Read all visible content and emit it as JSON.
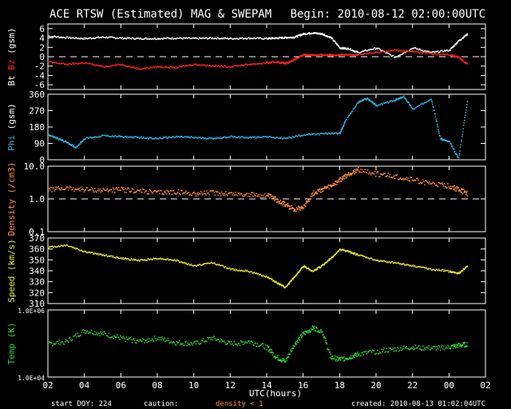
{
  "header": {
    "title": "ACE RTSW (Estimated) MAG & SWEPAM",
    "begin": "Begin: 2010-08-12 02:00:00UTC"
  },
  "footer": {
    "start_doy": "start DOY: 224",
    "caution": "caution:",
    "density_note": "density < 1",
    "created": "created: 2010-08-13 01:02:04UTC"
  },
  "x_axis": {
    "label": "UTC(hours)",
    "ticks": [
      "02",
      "04",
      "06",
      "08",
      "10",
      "12",
      "14",
      "16",
      "18",
      "20",
      "22",
      "00",
      "02"
    ]
  },
  "colors": {
    "bt": "#ffffff",
    "bz": "#ff2020",
    "phi": "#30b0e0",
    "density": "#ff8c3a",
    "speed": "#e8e830",
    "temp": "#30d030",
    "axis": "#ffffff",
    "background": "#000000"
  },
  "chart_data": [
    {
      "type": "scatter",
      "panel": "mag",
      "ylabel_parts": [
        "Bt",
        "Bz",
        "(gsm)"
      ],
      "ylim": [
        -7,
        7
      ],
      "yticks": [
        "6",
        "4",
        "2",
        "0",
        "-2",
        "-4",
        "-6"
      ],
      "x": [
        0,
        1,
        2,
        3,
        4,
        5,
        6,
        7,
        8,
        9,
        10,
        11,
        12,
        12.5,
        13,
        13.5,
        14,
        14.5,
        15,
        15.5,
        16,
        16.5,
        17,
        18,
        19,
        20,
        21,
        22,
        22.5,
        23
      ],
      "series": [
        {
          "name": "Bt",
          "values": [
            4.5,
            4.2,
            4.0,
            4.3,
            4.1,
            4.0,
            4.0,
            4.1,
            4.0,
            4.1,
            4.0,
            4.1,
            4.0,
            4.1,
            4.2,
            4.3,
            5.0,
            5.2,
            5.0,
            4.2,
            2.0,
            1.8,
            1.0,
            2.0,
            0.0,
            2.0,
            1.0,
            1.5,
            3.5,
            5.0
          ]
        },
        {
          "name": "Bz",
          "values": [
            -1.0,
            -1.5,
            -1.2,
            -2.0,
            -1.5,
            -2.5,
            -2.0,
            -2.2,
            -1.5,
            -1.8,
            -2.0,
            -1.5,
            -1.2,
            -1.0,
            -1.3,
            -0.5,
            0.5,
            0.5,
            0.5,
            0.5,
            0.5,
            0.5,
            0.6,
            1.0,
            1.5,
            1.2,
            0.8,
            0.5,
            0.0,
            -1.5
          ]
        }
      ]
    },
    {
      "type": "scatter",
      "panel": "phi",
      "ylabel_parts": [
        "Phi",
        "(gsm)"
      ],
      "ylim": [
        0,
        360
      ],
      "yticks": [
        "360",
        "270",
        "180",
        "90",
        "0"
      ],
      "x": [
        0,
        0.5,
        1,
        1.5,
        2,
        3,
        4,
        5,
        6,
        7,
        8,
        9,
        10,
        11,
        12,
        13,
        14,
        15,
        16,
        16.3,
        17,
        17.5,
        18,
        19,
        19.5,
        20,
        21,
        21.5,
        22,
        22.5,
        23
      ],
      "series": [
        {
          "name": "Phi",
          "values": [
            140,
            120,
            100,
            70,
            120,
            135,
            130,
            125,
            120,
            130,
            125,
            120,
            130,
            125,
            130,
            120,
            140,
            145,
            150,
            220,
            320,
            340,
            300,
            330,
            350,
            280,
            340,
            120,
            100,
            10,
            340
          ]
        }
      ]
    },
    {
      "type": "scatter",
      "panel": "density",
      "ylabel": "Density (/cm3)",
      "scale": "log",
      "ylim": [
        0.1,
        10.0
      ],
      "yticks": [
        "10.0",
        "1.0",
        "0.1"
      ],
      "x": [
        0,
        1,
        2,
        3,
        4,
        5,
        6,
        7,
        8,
        9,
        10,
        11,
        12,
        12.5,
        13,
        13.5,
        14,
        14.5,
        15,
        15.5,
        16,
        16.5,
        17,
        18,
        19,
        20,
        21,
        22,
        22.5,
        23
      ],
      "series": [
        {
          "name": "Density",
          "values": [
            2.0,
            2.2,
            2.0,
            1.9,
            2.0,
            1.8,
            1.6,
            1.7,
            1.5,
            1.6,
            1.5,
            1.4,
            1.3,
            1.0,
            0.7,
            0.5,
            0.6,
            1.5,
            2.0,
            2.5,
            4.0,
            6.0,
            8.0,
            6.0,
            5.0,
            4.0,
            3.0,
            2.5,
            2.0,
            1.5
          ]
        }
      ]
    },
    {
      "type": "scatter",
      "panel": "speed",
      "ylabel": "Speed (km/s)",
      "ylim": [
        310,
        370
      ],
      "yticks": [
        "370",
        "360",
        "350",
        "340",
        "330",
        "320",
        "310"
      ],
      "x": [
        0,
        1,
        2,
        3,
        4,
        5,
        6,
        7,
        8,
        9,
        10,
        11,
        12,
        12.5,
        13,
        13.5,
        14,
        14.5,
        15,
        15.5,
        16,
        16.5,
        17,
        18,
        19,
        20,
        21,
        22,
        22.5,
        23
      ],
      "series": [
        {
          "name": "Speed",
          "values": [
            362,
            364,
            358,
            355,
            352,
            350,
            352,
            350,
            345,
            348,
            342,
            340,
            335,
            330,
            325,
            335,
            345,
            340,
            345,
            352,
            360,
            358,
            355,
            350,
            348,
            345,
            342,
            340,
            338,
            345
          ]
        }
      ]
    },
    {
      "type": "scatter",
      "panel": "temp",
      "ylabel": "Temp (K)",
      "scale": "log",
      "ylim": [
        10000,
        1000000
      ],
      "yticks": [
        "1.0E+06",
        "1.0E+04"
      ],
      "x": [
        0,
        1,
        2,
        3,
        4,
        5,
        6,
        7,
        8,
        9,
        10,
        11,
        12,
        12.5,
        13,
        13.5,
        14,
        14.5,
        15,
        15.5,
        16,
        16.5,
        17,
        18,
        19,
        20,
        21,
        22,
        22.5,
        23
      ],
      "series": [
        {
          "name": "Temp",
          "values": [
            100000,
            120000,
            250000,
            200000,
            150000,
            120000,
            150000,
            110000,
            100000,
            150000,
            100000,
            120000,
            80000,
            40000,
            30000,
            100000,
            200000,
            300000,
            250000,
            40000,
            35000,
            40000,
            50000,
            60000,
            70000,
            80000,
            75000,
            80000,
            90000,
            100000
          ]
        }
      ]
    }
  ]
}
